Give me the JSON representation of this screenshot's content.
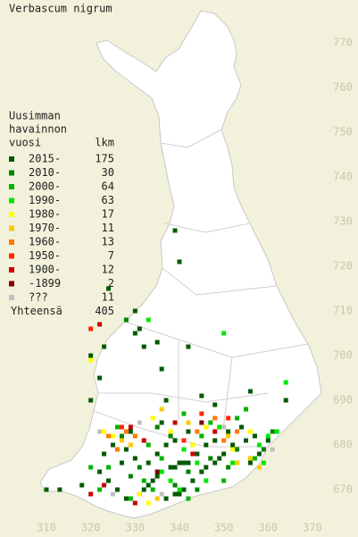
{
  "title": "Verbascum nigrum",
  "legend": {
    "header": [
      "Uusimman",
      "havainnon",
      "vuosi"
    ],
    "count_header": "lkm",
    "rows": [
      {
        "label": "2015-",
        "count": 175,
        "color": "#005a00",
        "points": [
          [
            340,
            676
          ],
          [
            341,
            676
          ],
          [
            342,
            676
          ],
          [
            339,
            675
          ],
          [
            338,
            675
          ],
          [
            336,
            674
          ],
          [
            335,
            673
          ],
          [
            334,
            672
          ],
          [
            333,
            671
          ],
          [
            332,
            670
          ],
          [
            331,
            669
          ],
          [
            337,
            668
          ],
          [
            339,
            669
          ],
          [
            340,
            669
          ],
          [
            341,
            670
          ],
          [
            343,
            672
          ],
          [
            345,
            674
          ],
          [
            346,
            675
          ],
          [
            348,
            676
          ],
          [
            349,
            677
          ],
          [
            350,
            678
          ],
          [
            352,
            680
          ],
          [
            355,
            681
          ],
          [
            357,
            682
          ],
          [
            330,
            677
          ],
          [
            328,
            679
          ],
          [
            325,
            680
          ],
          [
            323,
            678
          ],
          [
            322,
            674
          ],
          [
            324,
            672
          ],
          [
            326,
            670
          ],
          [
            328,
            668
          ],
          [
            344,
            678
          ],
          [
            346,
            680
          ],
          [
            348,
            681
          ],
          [
            351,
            683
          ],
          [
            354,
            684
          ],
          [
            342,
            683
          ],
          [
            339,
            681
          ],
          [
            337,
            680
          ],
          [
            335,
            678
          ],
          [
            333,
            676
          ],
          [
            329,
            683
          ],
          [
            336,
            685
          ],
          [
            327,
            676
          ],
          [
            356,
            676
          ],
          [
            358,
            678
          ],
          [
            360,
            681
          ],
          [
            318,
            671
          ],
          [
            313,
            670
          ],
          [
            310,
            670
          ],
          [
            330,
            705
          ],
          [
            331,
            706
          ],
          [
            332,
            702
          ],
          [
            335,
            703
          ],
          [
            336,
            697
          ],
          [
            323,
            702
          ],
          [
            320,
            700
          ],
          [
            324,
            715
          ],
          [
            330,
            710
          ],
          [
            356,
            692
          ],
          [
            345,
            691
          ],
          [
            348,
            689
          ],
          [
            337,
            690
          ],
          [
            339,
            728
          ],
          [
            340,
            721
          ],
          [
            342,
            702
          ],
          [
            320,
            690
          ],
          [
            322,
            695
          ],
          [
            364,
            690
          ]
        ]
      },
      {
        "label": "2010-",
        "count": 30,
        "color": "#008200",
        "points": [
          [
            335,
            684
          ],
          [
            338,
            682
          ],
          [
            343,
            680
          ],
          [
            347,
            677
          ],
          [
            331,
            675
          ],
          [
            329,
            673
          ],
          [
            344,
            670
          ],
          [
            351,
            675
          ],
          [
            353,
            679
          ],
          [
            359,
            679
          ],
          [
            327,
            682
          ],
          [
            339,
            671
          ],
          [
            342,
            674
          ],
          [
            361,
            683
          ],
          [
            328,
            708
          ]
        ]
      },
      {
        "label": "2000-",
        "count": 64,
        "color": "#00b400",
        "points": [
          [
            332,
            672
          ],
          [
            334,
            670
          ],
          [
            336,
            677
          ],
          [
            345,
            682
          ],
          [
            350,
            672
          ],
          [
            324,
            675
          ],
          [
            341,
            687
          ],
          [
            326,
            684
          ],
          [
            357,
            677
          ],
          [
            353,
            686
          ],
          [
            333,
            680
          ],
          [
            329,
            668
          ],
          [
            347,
            685
          ],
          [
            320,
            675
          ],
          [
            322,
            670
          ],
          [
            342,
            668
          ],
          [
            355,
            688
          ]
        ]
      },
      {
        "label": "1990-",
        "count": 63,
        "color": "#00e600",
        "points": [
          [
            344,
            676
          ],
          [
            346,
            672
          ],
          [
            358,
            680
          ],
          [
            360,
            682
          ],
          [
            349,
            684
          ],
          [
            338,
            672
          ],
          [
            340,
            670
          ],
          [
            352,
            676
          ],
          [
            359,
            676
          ],
          [
            333,
            708
          ],
          [
            350,
            705
          ],
          [
            336,
            674
          ],
          [
            362,
            683
          ],
          [
            364,
            694
          ],
          [
            341,
            679
          ]
        ]
      },
      {
        "label": "1980-",
        "count": 17,
        "color": "#ffff00",
        "points": [
          [
            325,
            682
          ],
          [
            334,
            686
          ],
          [
            346,
            684
          ],
          [
            338,
            683
          ],
          [
            331,
            669
          ],
          [
            343,
            680
          ],
          [
            352,
            679
          ],
          [
            356,
            683
          ],
          [
            323,
            683
          ],
          [
            320,
            699
          ],
          [
            333,
            667
          ]
        ]
      },
      {
        "label": "1970-",
        "count": 11,
        "color": "#ffc800",
        "points": [
          [
            327,
            681
          ],
          [
            342,
            685
          ],
          [
            351,
            682
          ],
          [
            329,
            680
          ],
          [
            335,
            668
          ],
          [
            353,
            676
          ],
          [
            356,
            677
          ],
          [
            336,
            688
          ],
          [
            358,
            675
          ]
        ]
      },
      {
        "label": "1960-",
        "count": 13,
        "color": "#ff7800",
        "points": [
          [
            328,
            683
          ],
          [
            330,
            682
          ],
          [
            344,
            683
          ],
          [
            350,
            681
          ],
          [
            326,
            679
          ],
          [
            348,
            686
          ],
          [
            353,
            683
          ],
          [
            324,
            682
          ]
        ]
      },
      {
        "label": "1950-",
        "count": 7,
        "color": "#ff2800",
        "points": [
          [
            327,
            684
          ],
          [
            341,
            681
          ],
          [
            351,
            686
          ],
          [
            320,
            706
          ],
          [
            345,
            687
          ]
        ]
      },
      {
        "label": "1900-",
        "count": 12,
        "color": "#c80000",
        "points": [
          [
            329,
            684
          ],
          [
            343,
            678
          ],
          [
            332,
            681
          ],
          [
            339,
            685
          ],
          [
            320,
            669
          ],
          [
            323,
            671
          ],
          [
            348,
            683
          ],
          [
            322,
            707
          ],
          [
            330,
            667
          ]
        ]
      },
      {
        "label": "-1899",
        "count": 2,
        "color": "#800000",
        "points": [
          [
            345,
            685
          ],
          [
            335,
            674
          ]
        ]
      },
      {
        "label": "???",
        "count": 11,
        "color": "#c0c0c0",
        "points": [
          [
            322,
            683
          ],
          [
            336,
            669
          ],
          [
            350,
            684
          ],
          [
            325,
            669
          ],
          [
            331,
            685
          ],
          [
            361,
            679
          ]
        ]
      }
    ]
  },
  "total": {
    "label": "Yhteensä",
    "value": 405
  },
  "xlim": [
    310,
    370
  ],
  "ylim": [
    670,
    770
  ],
  "xticks": [
    310,
    320,
    330,
    340,
    350,
    360,
    370
  ],
  "yticks": [
    670,
    680,
    690,
    700,
    710,
    720,
    730,
    740,
    750,
    760,
    770
  ]
}
